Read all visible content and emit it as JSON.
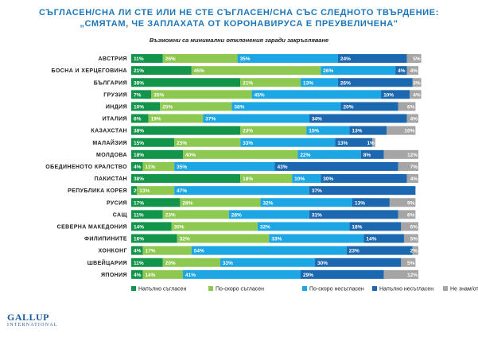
{
  "title_line1": "СЪГЛАСЕН/СНА ЛИ СТЕ ИЛИ НЕ СТЕ СЪГЛАСЕН/СНА СЪС СЛЕДНОТО ТВЪРДЕНИЕ:",
  "title_line2": "„СМЯТАМ, ЧЕ ЗАПЛАХАТА ОТ КОРОНАВИРУСА Е ПРЕУВЕЛИЧЕНА\"",
  "note": "Възможни са минимални отклонения заради закръгляване",
  "logo": {
    "line1": "GALLUP",
    "line2": "INTERNATIONAL"
  },
  "chart_data": {
    "type": "bar",
    "orientation": "horizontal",
    "stacked": true,
    "xlim": [
      0,
      100
    ],
    "categories": [
      "АВСТРИЯ",
      "БОСНА И ХЕРЦЕГОВИНА",
      "БЪЛГАРИЯ",
      "ГРУЗИЯ",
      "ИНДИЯ",
      "ИТАЛИЯ",
      "КАЗАХСТАН",
      "МАЛАЙЗИЯ",
      "МОЛДОВА",
      "ОБЕДИНЕНОТО КРАЛСТВО",
      "ПАКИСТАН",
      "РЕПУБЛИКА КОРЕЯ",
      "РУСИЯ",
      "САЩ",
      "СЕВЕРНА МАКЕДОНИЯ",
      "ФИЛИПИНИТЕ",
      "ХОНКОНГ",
      "ШВЕЙЦАРИЯ",
      "ЯПОНИЯ"
    ],
    "series": [
      {
        "name": "Напълно съгласен",
        "color": "#12944a",
        "values": [
          11,
          21,
          38,
          7,
          10,
          6,
          38,
          15,
          18,
          4,
          38,
          2,
          17,
          11,
          14,
          16,
          4,
          11,
          4
        ]
      },
      {
        "name": "По-скоро съгласен",
        "color": "#8dc850",
        "values": [
          26,
          45,
          21,
          35,
          25,
          19,
          23,
          23,
          40,
          11,
          18,
          13,
          28,
          23,
          30,
          32,
          17,
          20,
          14
        ]
      },
      {
        "name": "По-скоро несъгласен",
        "color": "#1ca6e3",
        "values": [
          35,
          26,
          13,
          45,
          38,
          37,
          15,
          33,
          22,
          35,
          10,
          47,
          32,
          28,
          32,
          33,
          54,
          33,
          41
        ]
      },
      {
        "name": "Напълно несъгласен",
        "color": "#1b68b0",
        "values": [
          24,
          4,
          26,
          10,
          20,
          34,
          13,
          13,
          8,
          43,
          30,
          37,
          13,
          31,
          18,
          14,
          23,
          30,
          29
        ]
      },
      {
        "name": "Не знам/отказ",
        "color": "#a5a5a5",
        "values": [
          5,
          4,
          3,
          4,
          6,
          4,
          10,
          1,
          12,
          7,
          4,
          0,
          9,
          6,
          6,
          5,
          2,
          5,
          12
        ]
      }
    ]
  }
}
